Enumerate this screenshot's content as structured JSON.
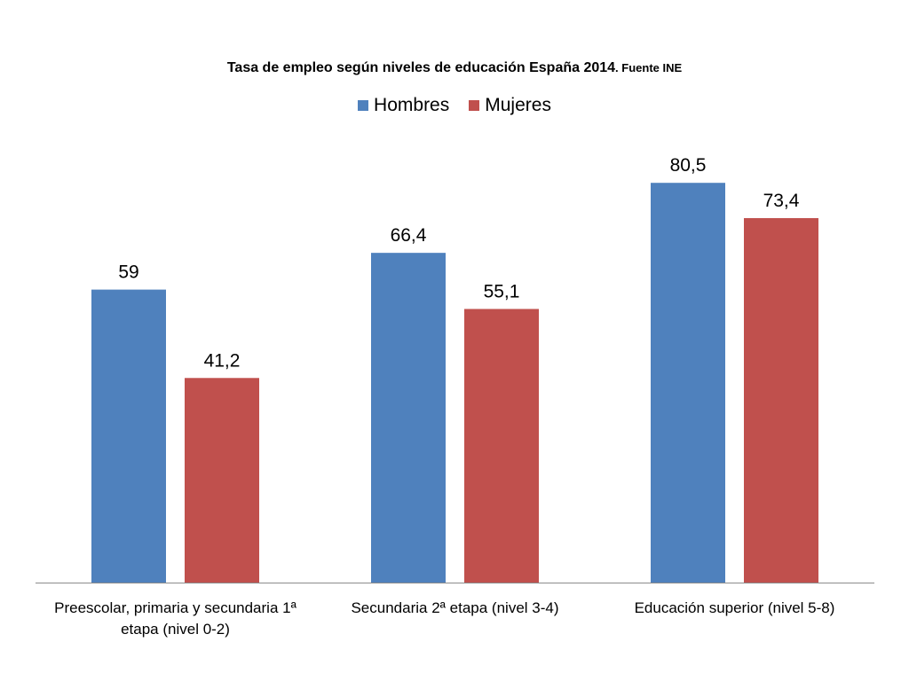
{
  "chart_data": {
    "type": "bar",
    "title": "Tasa de empleo según niveles de educación España 2014",
    "subtitle": ". Fuente INE",
    "categories": [
      [
        "Preescolar, primaria y secundaria 1ª",
        "etapa (nivel 0-2)"
      ],
      [
        "Secundaria 2ª etapa (nivel 3-4)"
      ],
      [
        "Educación superior (nivel 5-8)"
      ]
    ],
    "series": [
      {
        "name": "Hombres",
        "color": "#4F81BD",
        "values": [
          59,
          66.4,
          80.5
        ],
        "labels": [
          "59",
          "66,4",
          "80,5"
        ]
      },
      {
        "name": "Mujeres",
        "color": "#C0504D",
        "values": [
          41.2,
          55.1,
          73.4
        ],
        "labels": [
          "41,2",
          "55,1",
          "73,4"
        ]
      }
    ],
    "ylim": [
      0,
      90
    ],
    "legend_position": "top",
    "grid": false
  }
}
